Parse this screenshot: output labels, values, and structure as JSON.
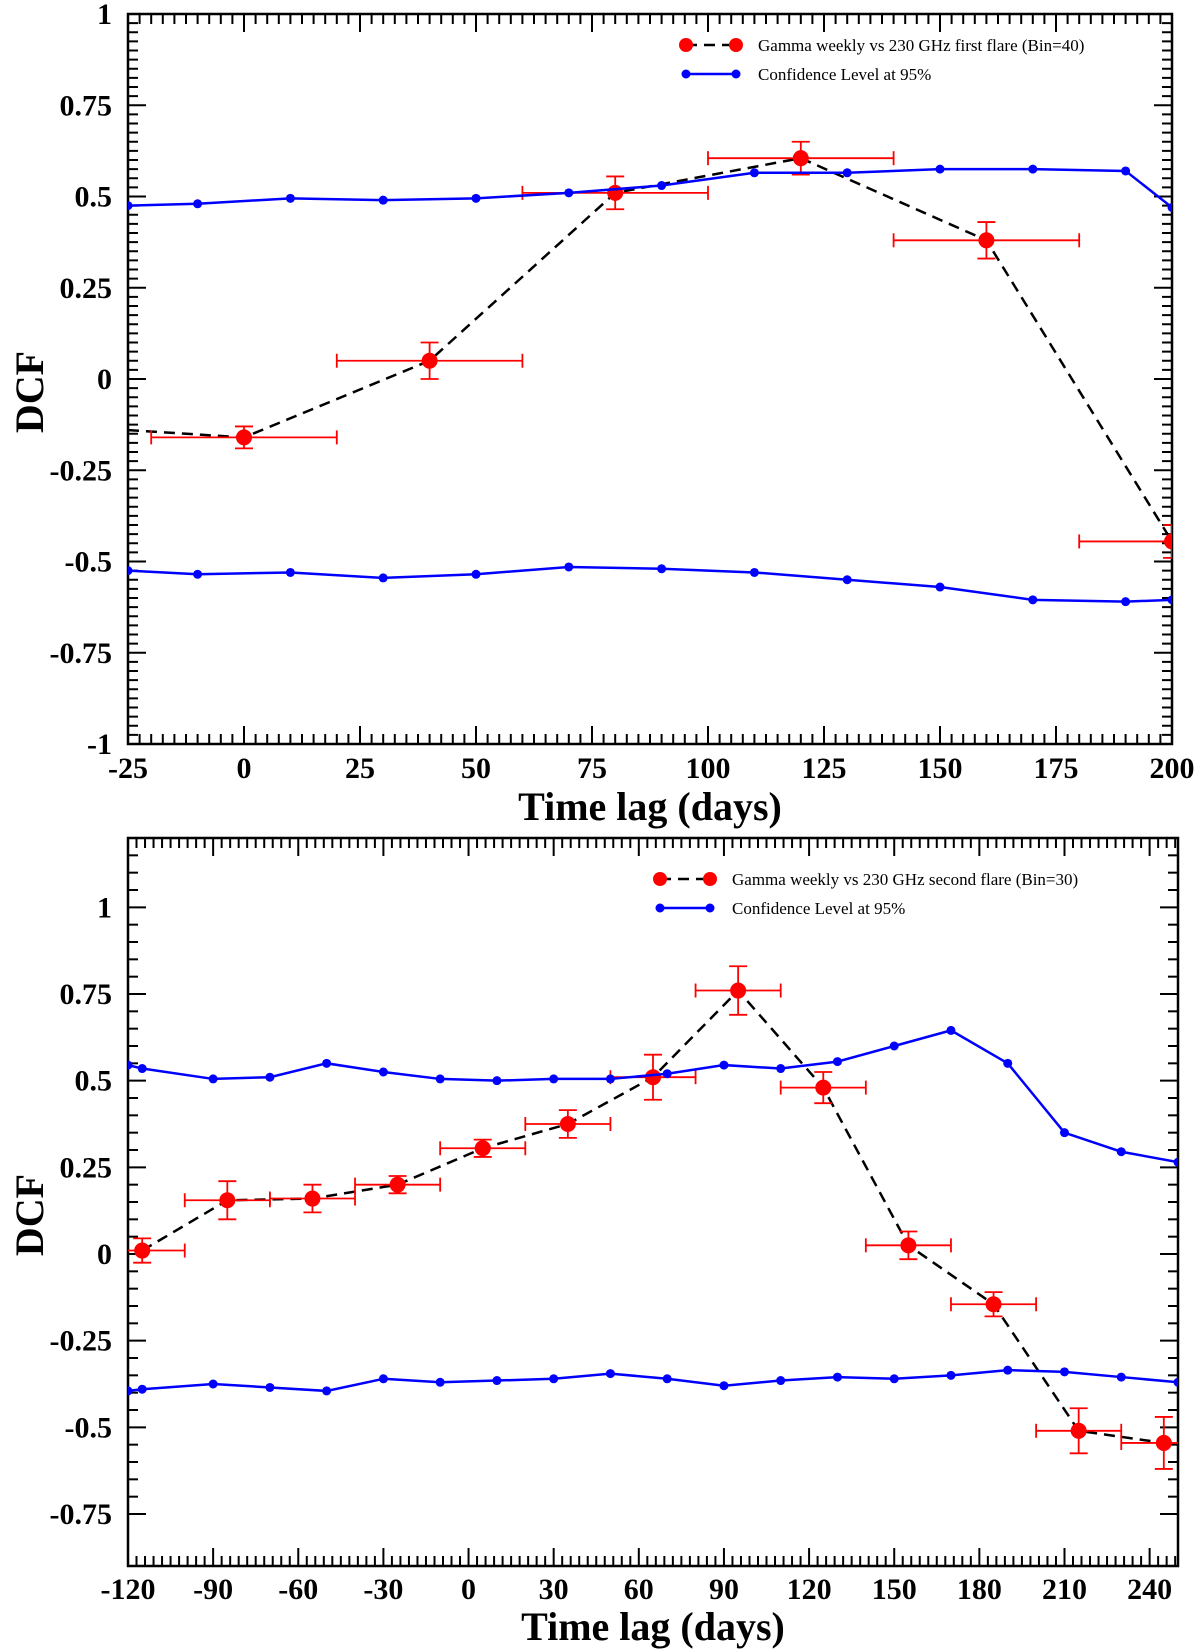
{
  "chart_data": [
    {
      "type": "line",
      "xlabel": "Time lag (days)",
      "ylabel": "DCF",
      "xlim": [
        -25,
        200
      ],
      "ylim": [
        -1,
        1
      ],
      "xticks": [
        -25,
        0,
        25,
        50,
        75,
        100,
        125,
        150,
        175,
        200
      ],
      "xtick_labels": [
        "-25",
        "0",
        "25",
        "50",
        "75",
        "100",
        "125",
        "150",
        "175",
        "200"
      ],
      "yticks": [
        -1,
        -0.75,
        -0.5,
        -0.25,
        0,
        0.25,
        0.5,
        0.75,
        1
      ],
      "ytick_labels": [
        "-1",
        "-0.75",
        "-0.5",
        "-0.25",
        "0",
        "0.25",
        "0.5",
        "0.75",
        "1"
      ],
      "legend_position": "top-right",
      "series": [
        {
          "name": "Gamma weekly vs 230 GHz first flare (Bin=40)",
          "color": "#ff0000",
          "line_color": "#000000",
          "style": "dashed",
          "lead_in": {
            "x": -25,
            "y": -0.14
          },
          "points": [
            {
              "x": 0,
              "y": -0.16,
              "xerr": 20,
              "yerr": 0.03
            },
            {
              "x": 40,
              "y": 0.05,
              "xerr": 20,
              "yerr": 0.05
            },
            {
              "x": 80,
              "y": 0.51,
              "xerr": 20,
              "yerr": 0.045
            },
            {
              "x": 120,
              "y": 0.605,
              "xerr": 20,
              "yerr": 0.045
            },
            {
              "x": 160,
              "y": 0.38,
              "xerr": 20,
              "yerr": 0.05
            },
            {
              "x": 200,
              "y": -0.445,
              "xerr": 20,
              "yerr": 0.045
            }
          ]
        },
        {
          "name": "Confidence Level at 95%",
          "color": "#0000ff",
          "style": "solid",
          "x": [
            -25,
            -10,
            10,
            30,
            50,
            70,
            90,
            110,
            130,
            150,
            170,
            190,
            200
          ],
          "y": [
            0.475,
            0.48,
            0.495,
            0.49,
            0.495,
            0.51,
            0.53,
            0.565,
            0.565,
            0.575,
            0.575,
            0.57,
            0.47
          ]
        },
        {
          "name": "",
          "color": "#0000ff",
          "style": "solid",
          "x": [
            -25,
            -10,
            10,
            30,
            50,
            70,
            90,
            110,
            130,
            150,
            170,
            190,
            200
          ],
          "y": [
            -0.525,
            -0.535,
            -0.53,
            -0.545,
            -0.535,
            -0.515,
            -0.52,
            -0.53,
            -0.55,
            -0.57,
            -0.605,
            -0.61,
            -0.605
          ]
        }
      ]
    },
    {
      "type": "line",
      "xlabel": "Time lag (days)",
      "ylabel": "DCF",
      "xlim": [
        -120,
        250
      ],
      "ylim": [
        -0.9,
        1.2
      ],
      "xticks": [
        -120,
        -90,
        -60,
        -30,
        0,
        30,
        60,
        90,
        120,
        150,
        180,
        210,
        240
      ],
      "xtick_labels": [
        "-120",
        "-90",
        "-60",
        "-30",
        "0",
        "30",
        "60",
        "90",
        "120",
        "150",
        "180",
        "210",
        "240"
      ],
      "yticks": [
        -0.75,
        -0.5,
        -0.25,
        0,
        0.25,
        0.5,
        0.75,
        1
      ],
      "ytick_labels": [
        "-0.75",
        "-0.5",
        "-0.25",
        "0",
        "0.25",
        "0.5",
        "0.75",
        "1"
      ],
      "legend_position": "top-right",
      "series": [
        {
          "name": "Gamma weekly vs 230 GHz second flare (Bin=30)",
          "color": "#ff0000",
          "line_color": "#000000",
          "style": "dashed",
          "points": [
            {
              "x": -115,
              "y": 0.01,
              "xerr": 15,
              "yerr": 0.035
            },
            {
              "x": -85,
              "y": 0.155,
              "xerr": 15,
              "yerr": 0.055
            },
            {
              "x": -55,
              "y": 0.16,
              "xerr": 15,
              "yerr": 0.04
            },
            {
              "x": -25,
              "y": 0.2,
              "xerr": 15,
              "yerr": 0.025
            },
            {
              "x": 5,
              "y": 0.305,
              "xerr": 15,
              "yerr": 0.025
            },
            {
              "x": 35,
              "y": 0.375,
              "xerr": 15,
              "yerr": 0.04
            },
            {
              "x": 65,
              "y": 0.51,
              "xerr": 15,
              "yerr": 0.065
            },
            {
              "x": 95,
              "y": 0.76,
              "xerr": 15,
              "yerr": 0.07
            },
            {
              "x": 125,
              "y": 0.48,
              "xerr": 15,
              "yerr": 0.045
            },
            {
              "x": 155,
              "y": 0.025,
              "xerr": 15,
              "yerr": 0.04
            },
            {
              "x": 185,
              "y": -0.145,
              "xerr": 15,
              "yerr": 0.035
            },
            {
              "x": 215,
              "y": -0.51,
              "xerr": 15,
              "yerr": 0.065
            },
            {
              "x": 245,
              "y": -0.545,
              "xerr": 15,
              "yerr": 0.075
            }
          ]
        },
        {
          "name": "Confidence Level at 95%",
          "color": "#0000ff",
          "style": "solid",
          "x": [
            -120,
            -115,
            -90,
            -70,
            -50,
            -30,
            -10,
            10,
            30,
            50,
            70,
            90,
            110,
            130,
            150,
            170,
            190,
            210,
            230,
            250
          ],
          "y": [
            0.545,
            0.535,
            0.505,
            0.51,
            0.55,
            0.525,
            0.505,
            0.5,
            0.505,
            0.505,
            0.52,
            0.545,
            0.535,
            0.555,
            0.6,
            0.645,
            0.55,
            0.35,
            0.295,
            0.265
          ]
        },
        {
          "name": "",
          "color": "#0000ff",
          "style": "solid",
          "x": [
            -120,
            -115,
            -90,
            -70,
            -50,
            -30,
            -10,
            10,
            30,
            50,
            70,
            90,
            110,
            130,
            150,
            170,
            190,
            210,
            230,
            250
          ],
          "y": [
            -0.395,
            -0.39,
            -0.375,
            -0.385,
            -0.395,
            -0.36,
            -0.37,
            -0.365,
            -0.36,
            -0.345,
            -0.36,
            -0.38,
            -0.365,
            -0.355,
            -0.36,
            -0.35,
            -0.335,
            -0.34,
            -0.355,
            -0.37
          ]
        }
      ]
    }
  ]
}
